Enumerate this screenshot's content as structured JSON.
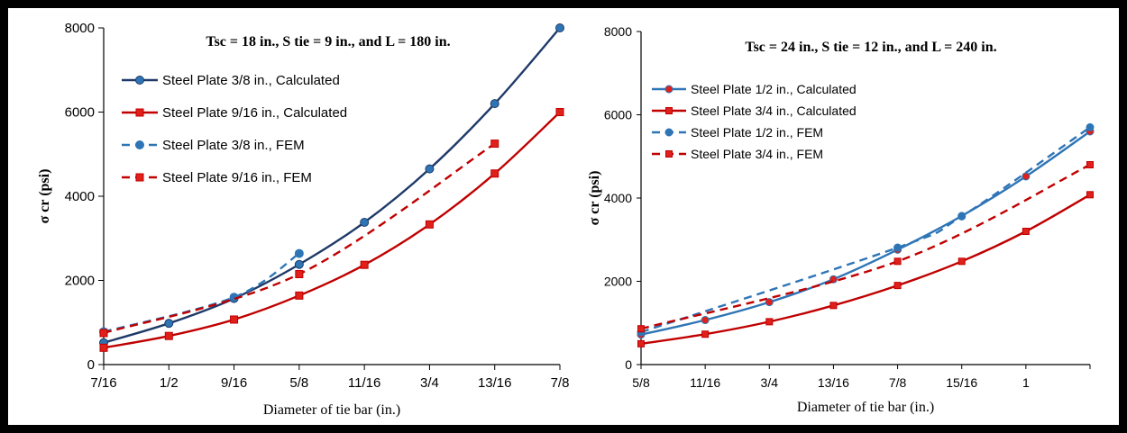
{
  "colors": {
    "blue": "#2E75B6",
    "navy": "#1F3A68",
    "red": "#C00000",
    "redmark": "#E0201B"
  },
  "chart_data": [
    {
      "type": "line",
      "title": "Tsc = 18 in., S tie = 9 in., and L = 180 in.",
      "xlabel": "Diameter of tie bar (in.)",
      "ylabel": "σ cr (psi)",
      "categories": [
        "7/16",
        "1/2",
        "9/16",
        "5/8",
        "11/16",
        "3/4",
        "13/16",
        "7/8"
      ],
      "ylim": [
        0,
        8000
      ],
      "yticks": [
        "0",
        "2000",
        "4000",
        "6000",
        "8000"
      ],
      "legend_position": "top-left",
      "series": [
        {
          "name": "Steel Plate 3/8 in., Calculated",
          "style": "solid",
          "color": "#1F3A68",
          "marker": "circle",
          "marker_color": "#2E75B6",
          "values": [
            520,
            980,
            1570,
            2380,
            3380,
            4650,
            6200,
            8000
          ]
        },
        {
          "name": "Steel Plate 9/16 in., Calculated",
          "style": "solid",
          "color": "#C00000",
          "marker": "square",
          "marker_color": "#E0201B",
          "values": [
            400,
            680,
            1070,
            1640,
            2370,
            3330,
            4540,
            6000
          ]
        },
        {
          "name": "Steel Plate 3/8 in., FEM",
          "style": "dashed",
          "color": "#2E75B6",
          "marker": "circle",
          "marker_color": "#2E75B6",
          "values": [
            780,
            null,
            1600,
            2640,
            null,
            null,
            null,
            null
          ]
        },
        {
          "name": "Steel Plate 9/16 in., FEM",
          "style": "dashed",
          "color": "#C00000",
          "marker": "square",
          "marker_color": "#E0201B",
          "values": [
            750,
            null,
            null,
            2150,
            null,
            null,
            5250,
            null
          ]
        }
      ]
    },
    {
      "type": "line",
      "title": "Tsc = 24 in., S tie = 12 in., and L = 240 in.",
      "xlabel": "Diameter of tie bar (in.)",
      "ylabel": "σ cr (psi)",
      "categories": [
        "5/8",
        "11/16",
        "3/4",
        "13/16",
        "7/8",
        "15/16",
        "1",
        ""
      ],
      "ylim": [
        0,
        8000
      ],
      "yticks": [
        "0",
        "2000",
        "4000",
        "6000",
        "8000"
      ],
      "legend_position": "top-left",
      "series": [
        {
          "name": "Steel Plate 1/2 in., Calculated",
          "style": "solid",
          "color": "#2E75B6",
          "marker": "circle",
          "marker_color": "#E0201B",
          "values": [
            720,
            1070,
            1500,
            2050,
            2760,
            3570,
            4520,
            5600
          ]
        },
        {
          "name": "Steel Plate 3/4 in., Calculated",
          "style": "solid",
          "color": "#C00000",
          "marker": "square",
          "marker_color": "#E0201B",
          "values": [
            500,
            730,
            1030,
            1420,
            1900,
            2480,
            3200,
            4080
          ]
        },
        {
          "name": "Steel Plate 1/2 in., FEM",
          "style": "dashed",
          "color": "#2E75B6",
          "marker": "circle",
          "marker_color": "#2E75B6",
          "values": [
            780,
            null,
            null,
            null,
            2810,
            3560,
            null,
            5700
          ]
        },
        {
          "name": "Steel Plate 3/4 in., FEM",
          "style": "dashed",
          "color": "#C00000",
          "marker": "square",
          "marker_color": "#E0201B",
          "values": [
            860,
            null,
            null,
            null,
            2480,
            null,
            null,
            4800
          ]
        }
      ]
    }
  ]
}
